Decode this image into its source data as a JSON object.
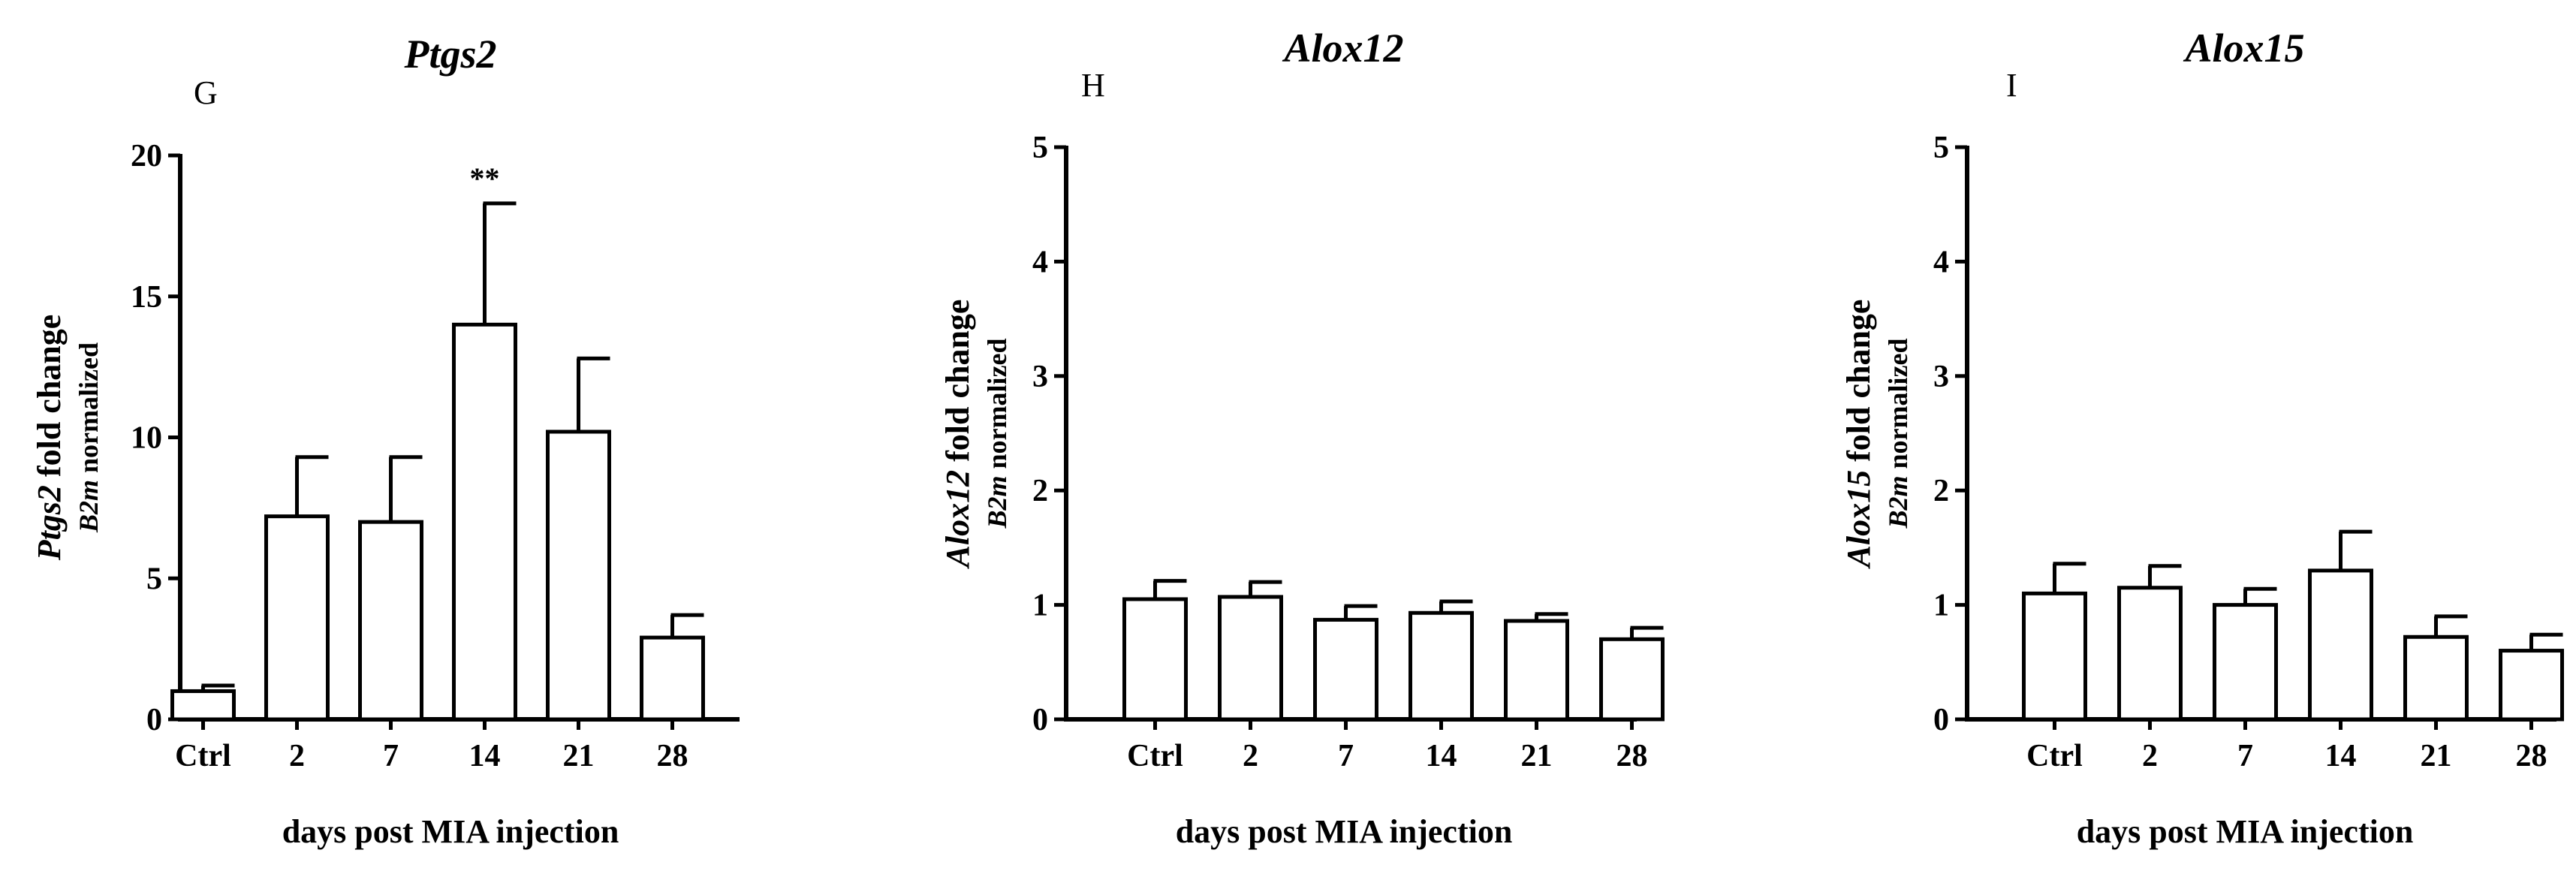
{
  "chart_data": [
    {
      "type": "bar",
      "panel_letter": "G",
      "title": "Ptgs2",
      "ylabel_gene": "Ptgs2",
      "ylabel_rest": " fold change",
      "ylabel_norm_gene": "B2m",
      "ylabel_norm_rest": " normalized",
      "xlabel": "days post MIA injection",
      "categories": [
        "Ctrl",
        "2",
        "7",
        "14",
        "21",
        "28"
      ],
      "values": [
        1.0,
        7.2,
        7.0,
        14.0,
        10.2,
        2.9
      ],
      "errors": [
        0.2,
        2.1,
        2.3,
        4.3,
        2.6,
        0.8
      ],
      "annotations": [
        "",
        "",
        "",
        "**",
        "",
        ""
      ],
      "ylim": [
        0,
        20
      ],
      "yticks": [
        "0",
        "5",
        "10",
        "15",
        "20"
      ],
      "bar_fill": "#ffffff",
      "stroke": "#000000"
    },
    {
      "type": "bar",
      "panel_letter": "H",
      "title": "Alox12",
      "ylabel_gene": "Alox12",
      "ylabel_rest": " fold change",
      "ylabel_norm_gene": "B2m",
      "ylabel_norm_rest": " normalized",
      "xlabel": "days post MIA injection",
      "categories": [
        "Ctrl",
        "2",
        "7",
        "14",
        "21",
        "28"
      ],
      "values": [
        1.05,
        1.07,
        0.87,
        0.93,
        0.86,
        0.7
      ],
      "errors": [
        0.16,
        0.13,
        0.12,
        0.1,
        0.06,
        0.1
      ],
      "annotations": [
        "",
        "",
        "",
        "",
        "",
        ""
      ],
      "ylim": [
        0,
        5
      ],
      "yticks": [
        "0",
        "1",
        "2",
        "3",
        "4",
        "5"
      ],
      "bar_fill": "#ffffff",
      "stroke": "#000000"
    },
    {
      "type": "bar",
      "panel_letter": "I",
      "title": "Alox15",
      "ylabel_gene": "Alox15",
      "ylabel_rest": " fold change",
      "ylabel_norm_gene": "B2m",
      "ylabel_norm_rest": " normalized",
      "xlabel": "days post MIA injection",
      "categories": [
        "Ctrl",
        "2",
        "7",
        "14",
        "21",
        "28"
      ],
      "values": [
        1.1,
        1.15,
        1.0,
        1.3,
        0.72,
        0.6
      ],
      "errors": [
        0.26,
        0.19,
        0.14,
        0.34,
        0.18,
        0.14
      ],
      "annotations": [
        "",
        "",
        "",
        "",
        "",
        ""
      ],
      "ylim": [
        0,
        5
      ],
      "yticks": [
        "0",
        "1",
        "2",
        "3",
        "4",
        "5"
      ],
      "bar_fill": "#ffffff",
      "stroke": "#000000"
    }
  ]
}
